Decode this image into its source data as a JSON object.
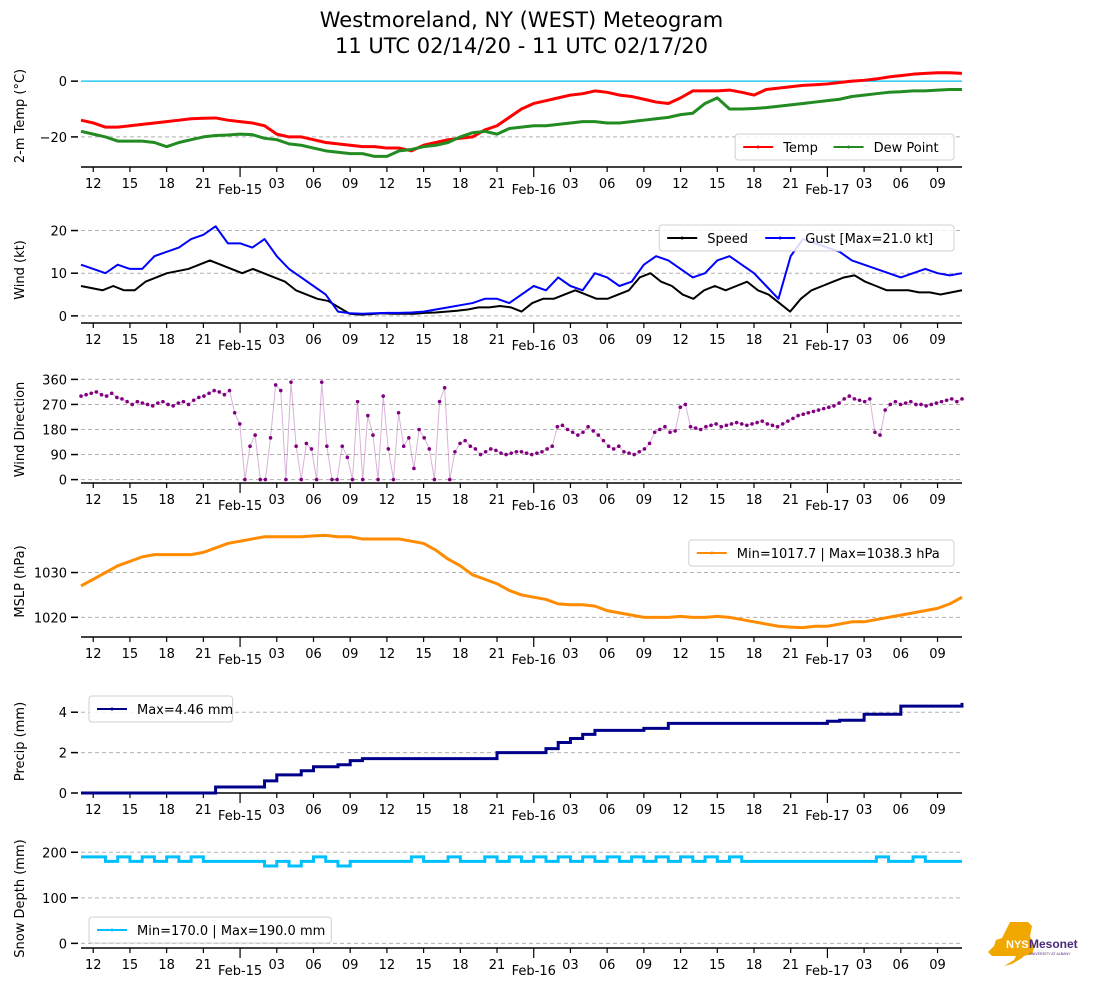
{
  "title_line1": "Westmoreland, NY (WEST) Meteogram",
  "title_line2": "11 UTC 02/14/20 - 11 UTC 02/17/20",
  "logo": {
    "text_main": "NYS",
    "text_brand": "Mesonet",
    "text_sub": "UNIVERSITY AT ALBANY",
    "color_state": "#f0a800",
    "color_text": "#4b2a7b"
  },
  "chart_data": {
    "x_axis": {
      "unit": "hours since 11 UTC 02/14/20",
      "range": [
        0,
        72
      ],
      "ticks": [
        {
          "h": 1,
          "label": "12"
        },
        {
          "h": 4,
          "label": "15"
        },
        {
          "h": 7,
          "label": "18"
        },
        {
          "h": 10,
          "label": "21"
        },
        {
          "h": 13,
          "label": "Feb-15",
          "major": true
        },
        {
          "h": 16,
          "label": "03"
        },
        {
          "h": 19,
          "label": "06"
        },
        {
          "h": 22,
          "label": "09"
        },
        {
          "h": 25,
          "label": "12"
        },
        {
          "h": 28,
          "label": "15"
        },
        {
          "h": 31,
          "label": "18"
        },
        {
          "h": 34,
          "label": "21"
        },
        {
          "h": 37,
          "label": "Feb-16",
          "major": true
        },
        {
          "h": 40,
          "label": "03"
        },
        {
          "h": 43,
          "label": "06"
        },
        {
          "h": 46,
          "label": "09"
        },
        {
          "h": 49,
          "label": "12"
        },
        {
          "h": 52,
          "label": "15"
        },
        {
          "h": 55,
          "label": "18"
        },
        {
          "h": 58,
          "label": "21"
        },
        {
          "h": 61,
          "label": "Feb-17",
          "major": true
        },
        {
          "h": 64,
          "label": "03"
        },
        {
          "h": 67,
          "label": "06"
        },
        {
          "h": 70,
          "label": "09"
        }
      ]
    },
    "panels": [
      {
        "id": "temp",
        "type": "line",
        "ylabel": "2-m Temp ( $^\\circ$C)",
        "ylabel_display": "2-m Temp (°C)",
        "ylim": [
          -29,
          4
        ],
        "yticks": [
          0,
          -20
        ],
        "ytick_labels": [
          "0",
          "−20"
        ],
        "grid_values": [
          -20
        ],
        "reference_line": {
          "value": 0,
          "color": "#00bfef"
        },
        "legend": {
          "placement": "lower-right",
          "ncol": 2
        },
        "series": [
          {
            "name": "Temp",
            "color": "#ff0000",
            "values": [
              -14,
              -15,
              -16.5,
              -16.5,
              -16,
              -15.5,
              -15,
              -14.5,
              -14,
              -13.5,
              -13.3,
              -13.2,
              -14,
              -14.5,
              -15,
              -16,
              -19,
              -20,
              -20,
              -21,
              -22,
              -22.5,
              -23,
              -23.5,
              -23.5,
              -24,
              -24,
              -25,
              -23,
              -22,
              -21,
              -20.5,
              -20,
              -17.5,
              -16,
              -13,
              -10,
              -8,
              -7,
              -6,
              -5,
              -4.5,
              -3.5,
              -4,
              -5,
              -5.5,
              -6.5,
              -7.5,
              -8,
              -6,
              -3.5,
              -3.5,
              -3.5,
              -3.2,
              -4,
              -5,
              -3,
              -2.5,
              -2,
              -1.5,
              -1.3,
              -1,
              -0.5,
              0,
              0.3,
              0.8,
              1.5,
              2,
              2.5,
              2.8,
              3,
              3,
              2.8
            ]
          },
          {
            "name": "Dew Point",
            "color": "#228b22",
            "values": [
              -18,
              -19,
              -20,
              -21.5,
              -21.5,
              -21.5,
              -22,
              -23.5,
              -22,
              -21,
              -20,
              -19.5,
              -19.3,
              -19,
              -19.2,
              -20.5,
              -21,
              -22.5,
              -23,
              -24,
              -25,
              -25.5,
              -26,
              -26,
              -27,
              -27,
              -25,
              -24.5,
              -23.5,
              -23,
              -22,
              -20,
              -18.5,
              -18,
              -19,
              -17,
              -16.5,
              -16,
              -16,
              -15.5,
              -15,
              -14.5,
              -14.5,
              -15,
              -15,
              -14.5,
              -14,
              -13.5,
              -13,
              -12,
              -11.5,
              -8,
              -6,
              -10,
              -10,
              -9.8,
              -9.5,
              -9,
              -8.5,
              -8,
              -7.5,
              -7,
              -6.5,
              -5.5,
              -5,
              -4.5,
              -4,
              -3.8,
              -3.5,
              -3.5,
              -3.2,
              -3,
              -3
            ]
          }
        ]
      },
      {
        "id": "wind",
        "type": "line",
        "ylabel": "Wind (kt)",
        "ylim": [
          -0.5,
          22
        ],
        "yticks": [
          0,
          10,
          20
        ],
        "ytick_labels": [
          "0",
          "10",
          "20"
        ],
        "grid_values": [
          0,
          10,
          20
        ],
        "legend": {
          "placement": "upper-right",
          "ncol": 2
        },
        "series": [
          {
            "name": "Speed",
            "color": "#000000",
            "values": [
              7,
              6.5,
              6,
              7,
              6,
              6,
              8,
              9,
              10,
              10.5,
              11,
              12,
              13,
              12,
              11,
              10,
              11,
              10,
              9,
              8,
              6,
              5,
              4,
              3.5,
              2,
              0.5,
              0.3,
              0.4,
              0.6,
              0.5,
              0.5,
              0.5,
              0.7,
              0.8,
              1,
              1.2,
              1.5,
              2,
              2,
              2.3,
              2,
              1,
              3,
              4,
              4,
              5,
              6,
              5,
              4,
              4,
              5,
              6,
              9,
              10,
              8,
              7,
              5,
              4,
              6,
              7,
              6,
              7,
              8,
              6,
              5,
              3,
              1,
              4,
              6,
              7,
              8,
              9,
              9.5,
              8,
              7,
              6,
              6,
              6,
              5.5,
              5.5,
              5,
              5.5,
              6
            ]
          },
          {
            "name": "Gust [Max=21.0 kt]",
            "color": "#0000ff",
            "values": [
              12,
              11,
              10,
              12,
              11,
              11,
              14,
              15,
              16,
              18,
              19,
              21,
              17,
              17,
              16,
              18,
              14,
              11,
              9,
              7,
              5,
              1,
              0.6,
              0.5,
              0.6,
              0.7,
              0.7,
              0.8,
              1,
              1.5,
              2,
              2.5,
              3,
              4,
              4,
              3,
              5,
              7,
              6,
              9,
              7,
              6,
              10,
              9,
              7,
              8,
              12,
              14,
              13,
              11,
              9,
              10,
              13,
              14,
              12,
              10,
              7,
              4,
              14,
              18,
              17,
              16,
              15,
              13,
              12,
              11,
              10,
              9,
              10,
              11,
              10,
              9.5,
              10
            ]
          }
        ]
      },
      {
        "id": "wdir",
        "type": "scatter",
        "ylabel": "Wind Direction",
        "ylim": [
          -5,
          365
        ],
        "yticks": [
          0,
          90,
          180,
          270,
          360
        ],
        "ytick_labels": [
          "0",
          "90",
          "180",
          "270",
          "360"
        ],
        "grid_values": [
          0,
          90,
          180,
          270,
          360
        ],
        "series": [
          {
            "name": "Wind Direction",
            "color": "#800080",
            "values": [
              300,
              305,
              310,
              315,
              305,
              300,
              310,
              295,
              290,
              280,
              270,
              280,
              275,
              270,
              265,
              275,
              280,
              270,
              265,
              275,
              280,
              270,
              285,
              295,
              300,
              310,
              320,
              315,
              305,
              320,
              240,
              200,
              0,
              120,
              160,
              0,
              0,
              150,
              340,
              320,
              0,
              350,
              120,
              0,
              130,
              110,
              0,
              350,
              120,
              0,
              0,
              120,
              80,
              0,
              280,
              0,
              230,
              160,
              0,
              300,
              110,
              0,
              240,
              120,
              150,
              40,
              180,
              150,
              110,
              0,
              280,
              330,
              0,
              100,
              130,
              140,
              120,
              110,
              90,
              100,
              110,
              105,
              95,
              90,
              95,
              100,
              100,
              95,
              90,
              95,
              100,
              110,
              120,
              190,
              195,
              180,
              170,
              160,
              170,
              190,
              175,
              160,
              140,
              120,
              110,
              120,
              100,
              95,
              90,
              100,
              110,
              130,
              170,
              180,
              190,
              170,
              175,
              260,
              270,
              190,
              185,
              180,
              190,
              195,
              200,
              190,
              195,
              200,
              205,
              200,
              195,
              200,
              205,
              210,
              200,
              195,
              190,
              200,
              210,
              220,
              230,
              235,
              240,
              245,
              250,
              255,
              260,
              265,
              275,
              290,
              300,
              290,
              285,
              280,
              290,
              170,
              160,
              250,
              270,
              280,
              270,
              275,
              280,
              270,
              270,
              265,
              270,
              275,
              280,
              285,
              290,
              280,
              290
            ]
          }
        ]
      },
      {
        "id": "mslp",
        "type": "line",
        "ylabel": "MSLP (hPa)",
        "ylim": [
          1016.5,
          1039.5
        ],
        "yticks": [
          1020,
          1030
        ],
        "ytick_labels": [
          "1020",
          "1030"
        ],
        "grid_values": [
          1020,
          1030
        ],
        "legend": {
          "placement": "upper-right",
          "ncol": 1
        },
        "series": [
          {
            "name": "Min=1017.7 | Max=1038.3 hPa",
            "color": "#ff8c00",
            "values": [
              1027,
              1028.5,
              1030,
              1031.5,
              1032.5,
              1033.5,
              1034,
              1034,
              1034,
              1034,
              1034.5,
              1035.5,
              1036.5,
              1037,
              1037.5,
              1038,
              1038,
              1038,
              1038,
              1038.2,
              1038.3,
              1038,
              1038,
              1037.5,
              1037.5,
              1037.5,
              1037.5,
              1037,
              1036.5,
              1035,
              1033,
              1031.5,
              1029.5,
              1028.5,
              1027.5,
              1026,
              1025,
              1024.5,
              1024,
              1023,
              1022.8,
              1022.8,
              1022.5,
              1021.5,
              1021,
              1020.5,
              1020,
              1020,
              1020,
              1020.2,
              1020,
              1020,
              1020.2,
              1020,
              1019.5,
              1019,
              1018.5,
              1018,
              1017.8,
              1017.7,
              1018,
              1018,
              1018.5,
              1019,
              1019,
              1019.5,
              1020,
              1020.5,
              1021,
              1021.5,
              1022,
              1023,
              1024.5
            ]
          }
        ]
      },
      {
        "id": "precip",
        "type": "line",
        "ylabel": "Precip (mm)",
        "ylim": [
          0,
          5.1
        ],
        "yticks": [
          0,
          2,
          4
        ],
        "ytick_labels": [
          "0",
          "2",
          "4"
        ],
        "grid_values": [
          2,
          4
        ],
        "legend": {
          "placement": "upper-left",
          "ncol": 1
        },
        "series": [
          {
            "name": "Max=4.46 mm",
            "color": "#00008b",
            "values": [
              0,
              0,
              0,
              0,
              0,
              0,
              0,
              0,
              0,
              0,
              0,
              0.3,
              0.3,
              0.3,
              0.3,
              0.6,
              0.9,
              0.9,
              1.1,
              1.3,
              1.3,
              1.4,
              1.6,
              1.7,
              1.7,
              1.7,
              1.7,
              1.7,
              1.7,
              1.7,
              1.7,
              1.7,
              1.7,
              1.7,
              2.0,
              2.0,
              2.0,
              2.0,
              2.2,
              2.5,
              2.7,
              2.9,
              3.1,
              3.1,
              3.1,
              3.1,
              3.2,
              3.2,
              3.45,
              3.45,
              3.45,
              3.45,
              3.45,
              3.45,
              3.45,
              3.45,
              3.45,
              3.45,
              3.45,
              3.45,
              3.45,
              3.55,
              3.6,
              3.6,
              3.9,
              3.9,
              3.9,
              4.3,
              4.3,
              4.3,
              4.3,
              4.3,
              4.46
            ]
          }
        ]
      },
      {
        "id": "snow",
        "type": "line",
        "ylabel": "Snow Depth (mm)",
        "ylim": [
          -8,
          205
        ],
        "yticks": [
          0,
          100,
          200
        ],
        "ytick_labels": [
          "0",
          "100",
          "200"
        ],
        "grid_values": [
          0,
          100,
          200
        ],
        "legend": {
          "placement": "lower-left",
          "ncol": 1
        },
        "series": [
          {
            "name": "Min=170.0 | Max=190.0 mm",
            "color": "#00bfff",
            "values": [
              190,
              190,
              180,
              190,
              180,
              190,
              180,
              190,
              180,
              190,
              180,
              180,
              180,
              180,
              180,
              170,
              180,
              170,
              180,
              190,
              180,
              170,
              180,
              180,
              180,
              180,
              180,
              190,
              180,
              180,
              190,
              180,
              180,
              190,
              180,
              190,
              180,
              190,
              180,
              190,
              180,
              190,
              180,
              190,
              180,
              190,
              180,
              190,
              180,
              190,
              180,
              190,
              180,
              190,
              180,
              180,
              180,
              180,
              180,
              180,
              180,
              180,
              180,
              180,
              180,
              190,
              180,
              180,
              190,
              180,
              180,
              180,
              180
            ]
          }
        ]
      }
    ]
  }
}
